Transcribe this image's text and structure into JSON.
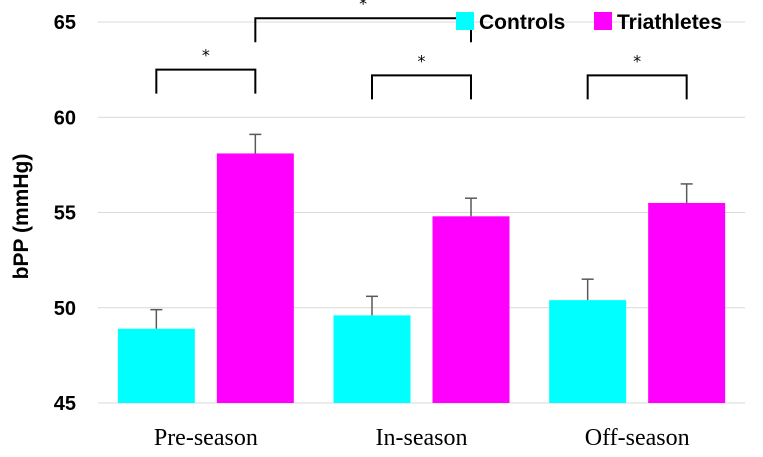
{
  "chart_data": {
    "type": "bar",
    "title": "",
    "xlabel": "",
    "ylabel": "bPP (mmHg)",
    "ylim": [
      45,
      65
    ],
    "yticks": [
      45,
      50,
      55,
      60,
      65
    ],
    "grid": true,
    "legend_position": "top-right",
    "categories": [
      "Pre-season",
      "In-season",
      "Off-season"
    ],
    "series": [
      {
        "name": "Controls",
        "color": "#00FFFF",
        "values": [
          48.9,
          49.6,
          50.4
        ],
        "errors": [
          1.0,
          1.0,
          1.1
        ]
      },
      {
        "name": "Triathletes",
        "color": "#FF00FF",
        "values": [
          58.1,
          54.8,
          55.5
        ],
        "errors": [
          1.0,
          0.95,
          1.0
        ]
      }
    ],
    "annotations": [
      {
        "type": "significance",
        "label": "*",
        "between": "Controls vs Triathletes",
        "category": "Pre-season",
        "level": 62.5
      },
      {
        "type": "significance",
        "label": "*",
        "between": "Controls vs Triathletes",
        "category": "In-season",
        "level": 62.2
      },
      {
        "type": "significance",
        "label": "*",
        "between": "Controls vs Triathletes",
        "category": "Off-season",
        "level": 62.2
      },
      {
        "type": "significance",
        "label": "*",
        "between": "Triathletes Pre-season vs Triathletes In-season",
        "level": 65.2
      }
    ]
  }
}
